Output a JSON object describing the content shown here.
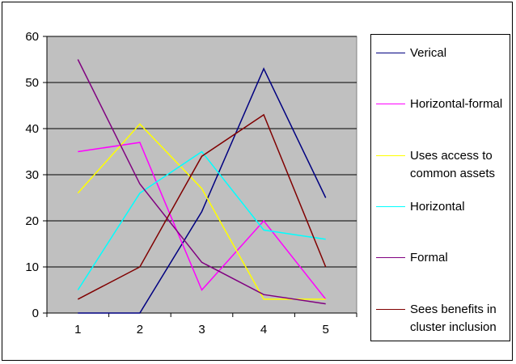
{
  "chart_data": {
    "type": "line",
    "title": "",
    "xlabel": "",
    "ylabel": "",
    "categories": [
      "1",
      "2",
      "3",
      "4",
      "5"
    ],
    "ylim": [
      0,
      60
    ],
    "yticks": [
      "0",
      "10",
      "20",
      "30",
      "40",
      "50",
      "60"
    ],
    "grid": true,
    "plot_background": "#c0c0c0",
    "legend_position": "right",
    "series": [
      {
        "name": "Verical",
        "color": "#000080",
        "values": [
          0,
          0,
          22,
          53,
          25
        ]
      },
      {
        "name": "Horizontal-formal",
        "color": "#ff00ff",
        "values": [
          35,
          37,
          5,
          20,
          3
        ]
      },
      {
        "name": "Uses access to common assets",
        "color": "#ffff00",
        "values": [
          26,
          41,
          27,
          3,
          3
        ]
      },
      {
        "name": "Horizontal",
        "color": "#00ffff",
        "values": [
          5,
          26,
          35,
          18,
          16
        ]
      },
      {
        "name": "Formal",
        "color": "#800080",
        "values": [
          55,
          28,
          11,
          4,
          2
        ]
      },
      {
        "name": "Sees benefits in cluster inclusion",
        "color": "#800000",
        "values": [
          3,
          10,
          34,
          43,
          10
        ]
      }
    ]
  }
}
